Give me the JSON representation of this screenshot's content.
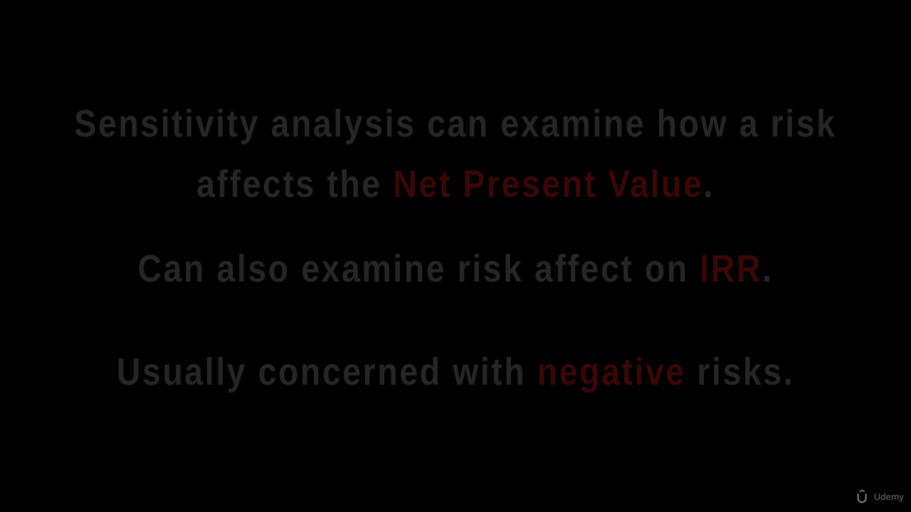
{
  "slide": {
    "line1": "Sensitivity analysis can examine how a risk",
    "line2_pre": "affects the ",
    "line2_hl": "Net Present Value",
    "line2_post": ".",
    "line3_pre": "Can also examine risk affect on ",
    "line3_hl": "IRR",
    "line3_post": ".",
    "line4_pre": "Usually concerned with ",
    "line4_hl": "negative",
    "line4_post": " risks."
  },
  "watermark": {
    "icon": "udemy-logo-icon",
    "label": "Udemy"
  },
  "colors": {
    "background": "#000000",
    "text": "#262626",
    "highlight": "#3a0707"
  }
}
